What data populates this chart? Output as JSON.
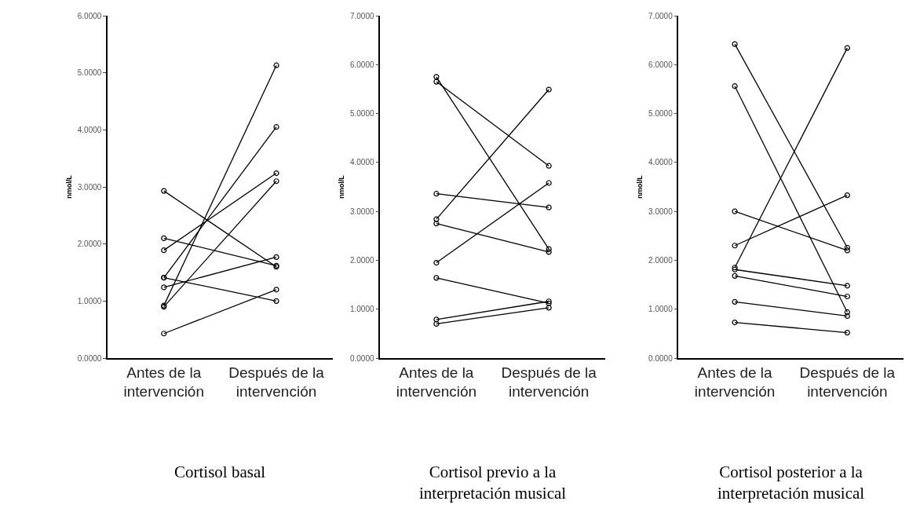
{
  "chart_data": [
    {
      "type": "line",
      "title": "Cortisol basal",
      "ylabel": "nmol/L",
      "categories": [
        "Antes de la\nintervención",
        "Después de la\nintervención"
      ],
      "ylim": [
        0,
        6
      ],
      "yticks": [
        {
          "value": 0,
          "label": "0.0000"
        },
        {
          "value": 1,
          "label": "1.0000"
        },
        {
          "value": 2,
          "label": "2.0000"
        },
        {
          "value": 3,
          "label": "3.0000"
        },
        {
          "value": 4,
          "label": "4.0000"
        },
        {
          "value": 5,
          "label": "5.0000"
        },
        {
          "value": 6,
          "label": "6.0000"
        }
      ],
      "marker": "circle",
      "line_style": "solid",
      "series": [
        {
          "color": "#000000",
          "values": [
            2.93,
            1.6
          ]
        },
        {
          "color": "#000000",
          "values": [
            2.1,
            1.62
          ]
        },
        {
          "color": "#000000",
          "values": [
            1.89,
            3.24
          ]
        },
        {
          "color": "#000000",
          "values": [
            1.41,
            4.05
          ]
        },
        {
          "color": "#000000",
          "values": [
            1.41,
            1.0
          ]
        },
        {
          "color": "#000000",
          "values": [
            0.92,
            5.13
          ]
        },
        {
          "color": "#000000",
          "values": [
            0.9,
            3.1
          ]
        },
        {
          "color": "#000000",
          "values": [
            1.24,
            1.77
          ]
        },
        {
          "color": "#000000",
          "values": [
            0.43,
            1.2
          ]
        }
      ]
    },
    {
      "type": "line",
      "title": "Cortisol previo a la\ninterpretación musical",
      "ylabel": "nmol/L",
      "categories": [
        "Antes de la\nintervención",
        "Después de la\nintervención"
      ],
      "ylim": [
        0,
        7
      ],
      "yticks": [
        {
          "value": 0,
          "label": "0.0000"
        },
        {
          "value": 1,
          "label": "1.0000"
        },
        {
          "value": 2,
          "label": "2.0000"
        },
        {
          "value": 3,
          "label": "3.0000"
        },
        {
          "value": 4,
          "label": "4.0000"
        },
        {
          "value": 5,
          "label": "5.0000"
        },
        {
          "value": 6,
          "label": "6.0000"
        },
        {
          "value": 7,
          "label": "7.0000"
        }
      ],
      "marker": "circle",
      "line_style": "solid",
      "series": [
        {
          "color": "#000000",
          "values": [
            5.75,
            2.23
          ]
        },
        {
          "color": "#000000",
          "values": [
            5.65,
            3.93
          ]
        },
        {
          "color": "#000000",
          "values": [
            3.36,
            3.08
          ]
        },
        {
          "color": "#000000",
          "values": [
            2.84,
            5.49
          ]
        },
        {
          "color": "#000000",
          "values": [
            2.75,
            2.17
          ]
        },
        {
          "color": "#000000",
          "values": [
            1.95,
            3.58
          ]
        },
        {
          "color": "#000000",
          "values": [
            1.64,
            1.12
          ]
        },
        {
          "color": "#000000",
          "values": [
            0.79,
            1.16
          ]
        },
        {
          "color": "#000000",
          "values": [
            0.7,
            1.03
          ]
        }
      ]
    },
    {
      "type": "line",
      "title": "Cortisol posterior a la\ninterpretación musical",
      "ylabel": "nmol/L",
      "categories": [
        "Antes de la\nintervención",
        "Después de la\nintervención"
      ],
      "ylim": [
        0,
        7
      ],
      "yticks": [
        {
          "value": 0,
          "label": "0.0000"
        },
        {
          "value": 1,
          "label": "1.0000"
        },
        {
          "value": 2,
          "label": "2.0000"
        },
        {
          "value": 3,
          "label": "3.0000"
        },
        {
          "value": 4,
          "label": "4.0000"
        },
        {
          "value": 5,
          "label": "5.0000"
        },
        {
          "value": 6,
          "label": "6.0000"
        },
        {
          "value": 7,
          "label": "7.0000"
        }
      ],
      "marker": "circle",
      "line_style": "solid",
      "series": [
        {
          "color": "#000000",
          "values": [
            6.42,
            2.26
          ]
        },
        {
          "color": "#000000",
          "values": [
            5.56,
            0.94
          ]
        },
        {
          "color": "#000000",
          "values": [
            3.0,
            2.2
          ]
        },
        {
          "color": "#000000",
          "values": [
            2.3,
            3.33
          ]
        },
        {
          "color": "#000000",
          "values": [
            1.85,
            6.34
          ]
        },
        {
          "color": "#000000",
          "values": [
            1.81,
            1.48
          ]
        },
        {
          "color": "#000000",
          "values": [
            1.68,
            1.26
          ]
        },
        {
          "color": "#000000",
          "values": [
            1.15,
            0.86
          ]
        },
        {
          "color": "#000000",
          "values": [
            0.73,
            0.52
          ]
        }
      ]
    }
  ]
}
